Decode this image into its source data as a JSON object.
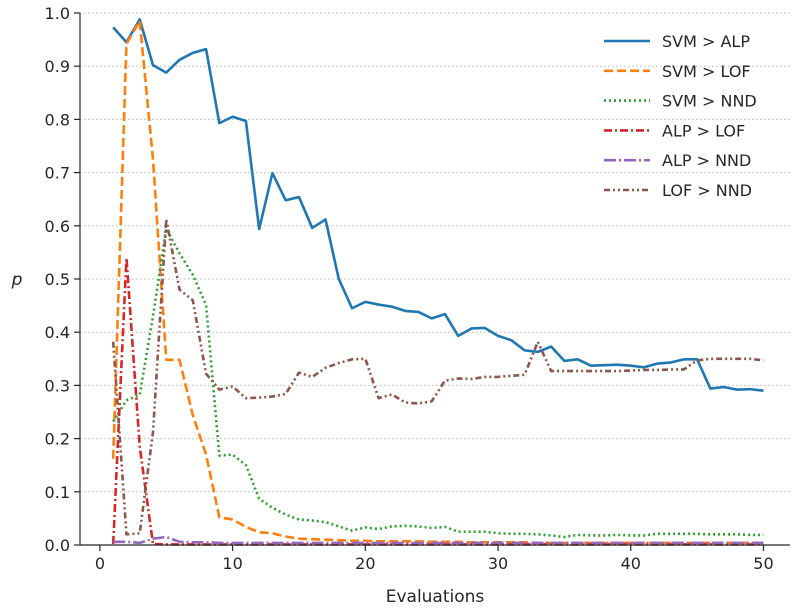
{
  "chart_data": {
    "type": "line",
    "title": "",
    "xlabel": "Evaluations",
    "ylabel": "p",
    "xlim": [
      -1.5,
      52
    ],
    "ylim": [
      0,
      1.0
    ],
    "xticks": [
      0,
      10,
      20,
      30,
      40,
      50
    ],
    "yticks": [
      0.0,
      0.1,
      0.2,
      0.3,
      0.4,
      0.5,
      0.6,
      0.7,
      0.8,
      0.9,
      1.0
    ],
    "grid": "horizontal-dotted",
    "legend_position": "top-right",
    "x": [
      1,
      2,
      3,
      4,
      5,
      6,
      7,
      8,
      9,
      10,
      11,
      12,
      13,
      14,
      15,
      16,
      17,
      18,
      19,
      20,
      21,
      22,
      23,
      24,
      25,
      26,
      27,
      28,
      29,
      30,
      31,
      32,
      33,
      34,
      35,
      36,
      37,
      38,
      39,
      40,
      41,
      42,
      43,
      44,
      45,
      46,
      47,
      48,
      49,
      50
    ],
    "series": [
      {
        "name": "SVM > ALP",
        "color": "#1f77b4",
        "dash": "solid",
        "values": [
          0.973,
          0.945,
          0.988,
          0.902,
          0.888,
          0.912,
          0.925,
          0.932,
          0.793,
          0.805,
          0.797,
          0.594,
          0.699,
          0.648,
          0.654,
          0.596,
          0.612,
          0.5,
          0.445,
          0.457,
          0.452,
          0.448,
          0.44,
          0.438,
          0.426,
          0.434,
          0.393,
          0.407,
          0.408,
          0.393,
          0.385,
          0.366,
          0.363,
          0.373,
          0.346,
          0.349,
          0.337,
          0.338,
          0.339,
          0.337,
          0.334,
          0.341,
          0.343,
          0.349,
          0.349,
          0.294,
          0.297,
          0.292,
          0.293,
          0.29
        ]
      },
      {
        "name": "SVM > LOF",
        "color": "#ff7f0e",
        "dash": "dashed",
        "values": [
          0.162,
          0.942,
          0.985,
          0.725,
          0.348,
          0.348,
          0.244,
          0.17,
          0.052,
          0.048,
          0.034,
          0.024,
          0.022,
          0.016,
          0.012,
          0.011,
          0.01,
          0.009,
          0.008,
          0.008,
          0.007,
          0.007,
          0.007,
          0.007,
          0.006,
          0.006,
          0.006,
          0.005,
          0.005,
          0.005,
          0.005,
          0.005,
          0.004,
          0.004,
          0.004,
          0.004,
          0.004,
          0.004,
          0.004,
          0.004,
          0.004,
          0.004,
          0.004,
          0.004,
          0.004,
          0.004,
          0.004,
          0.004,
          0.004,
          0.004
        ]
      },
      {
        "name": "SVM > NND",
        "color": "#2ca02c",
        "dash": "dotted",
        "values": [
          0.232,
          0.272,
          0.282,
          0.43,
          0.595,
          0.548,
          0.508,
          0.451,
          0.168,
          0.17,
          0.15,
          0.087,
          0.07,
          0.057,
          0.048,
          0.046,
          0.043,
          0.035,
          0.027,
          0.033,
          0.03,
          0.035,
          0.036,
          0.035,
          0.032,
          0.034,
          0.025,
          0.025,
          0.025,
          0.022,
          0.021,
          0.021,
          0.02,
          0.018,
          0.015,
          0.019,
          0.018,
          0.018,
          0.019,
          0.018,
          0.018,
          0.021,
          0.021,
          0.021,
          0.021,
          0.02,
          0.02,
          0.02,
          0.019,
          0.019
        ]
      },
      {
        "name": "ALP > LOF",
        "color": "#d62728",
        "dash": "dashdot",
        "values": [
          0.002,
          0.54,
          0.185,
          0.002,
          0.001,
          0.001,
          0.001,
          0.001,
          0.001,
          0.001,
          0.001,
          0.001,
          0.001,
          0.001,
          0.001,
          0.001,
          0.001,
          0.001,
          0.001,
          0.001,
          0.001,
          0.001,
          0.001,
          0.001,
          0.001,
          0.001,
          0.001,
          0.001,
          0.001,
          0.001,
          0.001,
          0.001,
          0.001,
          0.001,
          0.001,
          0.001,
          0.001,
          0.001,
          0.001,
          0.001,
          0.001,
          0.001,
          0.001,
          0.001,
          0.001,
          0.001,
          0.001,
          0.001,
          0.001,
          0.001
        ]
      },
      {
        "name": "ALP > NND",
        "color": "#9467bd",
        "dash": "dashdot-long",
        "values": [
          0.006,
          0.006,
          0.004,
          0.012,
          0.015,
          0.006,
          0.005,
          0.005,
          0.004,
          0.004,
          0.004,
          0.004,
          0.004,
          0.004,
          0.004,
          0.004,
          0.004,
          0.004,
          0.004,
          0.004,
          0.004,
          0.004,
          0.004,
          0.004,
          0.004,
          0.004,
          0.004,
          0.004,
          0.004,
          0.004,
          0.004,
          0.004,
          0.004,
          0.004,
          0.004,
          0.004,
          0.004,
          0.004,
          0.004,
          0.004,
          0.004,
          0.004,
          0.004,
          0.004,
          0.004,
          0.004,
          0.004,
          0.004,
          0.004,
          0.004
        ]
      },
      {
        "name": "LOF > NND",
        "color": "#8c564b",
        "dash": "dashdotdot",
        "values": [
          0.382,
          0.02,
          0.022,
          0.212,
          0.612,
          0.48,
          0.46,
          0.322,
          0.292,
          0.298,
          0.276,
          0.277,
          0.279,
          0.284,
          0.324,
          0.316,
          0.333,
          0.342,
          0.349,
          0.35,
          0.276,
          0.283,
          0.268,
          0.266,
          0.27,
          0.309,
          0.313,
          0.312,
          0.316,
          0.316,
          0.318,
          0.32,
          0.382,
          0.327,
          0.327,
          0.327,
          0.327,
          0.327,
          0.327,
          0.328,
          0.329,
          0.329,
          0.33,
          0.33,
          0.347,
          0.35,
          0.35,
          0.35,
          0.35,
          0.347
        ]
      }
    ]
  }
}
